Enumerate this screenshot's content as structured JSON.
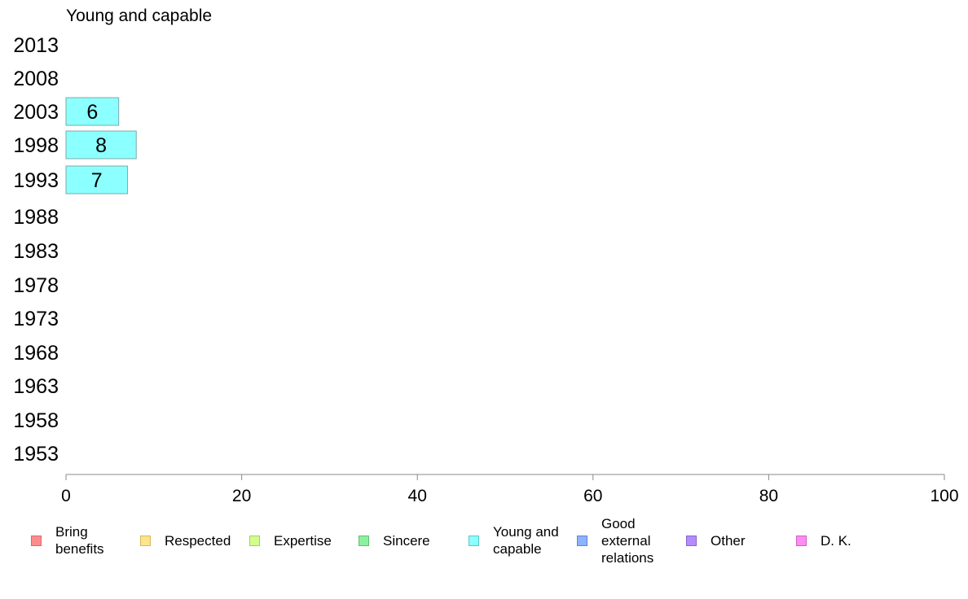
{
  "chart_data": {
    "type": "bar",
    "orientation": "horizontal",
    "title": "Young and capable",
    "categories": [
      "2013",
      "2008",
      "2003",
      "1998",
      "1993",
      "1988",
      "1983",
      "1978",
      "1973",
      "1968",
      "1963",
      "1958",
      "1953"
    ],
    "series": [
      {
        "name": "Young and capable",
        "values": [
          null,
          null,
          6,
          8,
          7,
          null,
          null,
          null,
          null,
          null,
          null,
          null,
          null
        ]
      }
    ],
    "data_labels": [
      "",
      "",
      "6",
      "8",
      "7",
      "",
      "",
      "",
      "",
      "",
      "",
      "",
      ""
    ],
    "x_ticks": [
      "0",
      "20",
      "40",
      "60",
      "80",
      "100"
    ],
    "xlim": [
      0,
      100
    ],
    "grid": false,
    "legend_position": "bottom",
    "legend": [
      {
        "label": "Bring\nbenefits",
        "color": "#ff8c8c",
        "border": "#d96a6a"
      },
      {
        "label": "Respected",
        "color": "#ffe48c",
        "border": "#d4b95a"
      },
      {
        "label": "Expertise",
        "color": "#d2ff8c",
        "border": "#a8cc66"
      },
      {
        "label": "Sincere",
        "color": "#8cf0a0",
        "border": "#5fbf75"
      },
      {
        "label": "Young and\ncapable",
        "color": "#8cffff",
        "border": "#5cc6c6"
      },
      {
        "label": "Good\nexternal\nrelations",
        "color": "#8cb4ff",
        "border": "#5f86d0"
      },
      {
        "label": "Other",
        "color": "#b48cff",
        "border": "#8a62d0"
      },
      {
        "label": "D. K.",
        "color": "#ff8cf0",
        "border": "#d060c4"
      }
    ],
    "bar_color": "#8cffff",
    "bar_border": "#7fa8a8",
    "axis_color": "#888888"
  }
}
